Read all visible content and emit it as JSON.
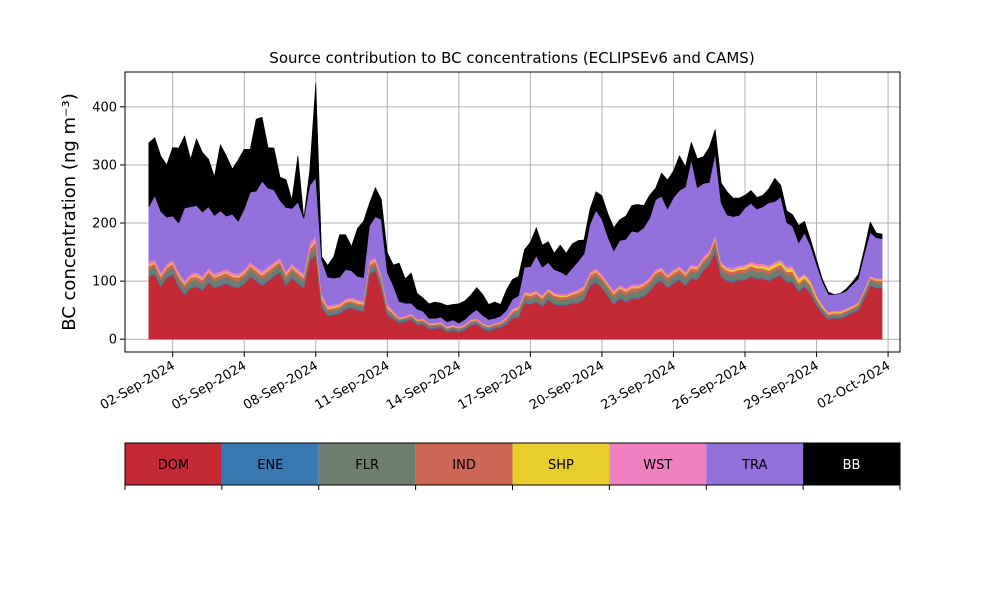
{
  "chart_data": {
    "type": "area",
    "stacked": true,
    "title": "Source contribution to BC concentrations (ECLIPSEv6 and CAMS)",
    "xlabel": "",
    "ylabel": "BC concentration (ng m⁻³)",
    "ylim": [
      -22,
      460
    ],
    "yticks": [
      0,
      100,
      200,
      300,
      400
    ],
    "xlim": [
      "2024-08-31T00:00",
      "2024-10-02T12:00"
    ],
    "xticks": [
      "02-Sep-2024",
      "05-Sep-2024",
      "08-Sep-2024",
      "11-Sep-2024",
      "14-Sep-2024",
      "17-Sep-2024",
      "20-Sep-2024",
      "23-Sep-2024",
      "26-Sep-2024",
      "29-Sep-2024",
      "02-Oct-2024"
    ],
    "xtick_dates": [
      "2024-09-02",
      "2024-09-05",
      "2024-09-08",
      "2024-09-11",
      "2024-09-14",
      "2024-09-17",
      "2024-09-20",
      "2024-09-23",
      "2024-09-26",
      "2024-09-29",
      "2024-10-02"
    ],
    "grid": true,
    "legend": "below",
    "x": [
      "2024-09-01T00:00",
      "2024-09-01T06:00",
      "2024-09-01T12:00",
      "2024-09-01T18:00",
      "2024-09-02T00:00",
      "2024-09-02T06:00",
      "2024-09-02T12:00",
      "2024-09-02T18:00",
      "2024-09-03T00:00",
      "2024-09-03T06:00",
      "2024-09-03T12:00",
      "2024-09-03T18:00",
      "2024-09-04T00:00",
      "2024-09-04T06:00",
      "2024-09-04T12:00",
      "2024-09-04T18:00",
      "2024-09-05T00:00",
      "2024-09-05T06:00",
      "2024-09-05T12:00",
      "2024-09-05T18:00",
      "2024-09-06T00:00",
      "2024-09-06T06:00",
      "2024-09-06T12:00",
      "2024-09-06T18:00",
      "2024-09-07T00:00",
      "2024-09-07T06:00",
      "2024-09-07T12:00",
      "2024-09-07T18:00",
      "2024-09-08T00:00",
      "2024-09-08T06:00",
      "2024-09-08T12:00",
      "2024-09-08T18:00",
      "2024-09-09T00:00",
      "2024-09-09T06:00",
      "2024-09-09T12:00",
      "2024-09-09T18:00",
      "2024-09-10T00:00",
      "2024-09-10T06:00",
      "2024-09-10T12:00",
      "2024-09-10T18:00",
      "2024-09-11T00:00",
      "2024-09-11T06:00",
      "2024-09-11T12:00",
      "2024-09-11T18:00",
      "2024-09-12T00:00",
      "2024-09-12T06:00",
      "2024-09-12T12:00",
      "2024-09-12T18:00",
      "2024-09-13T00:00",
      "2024-09-13T06:00",
      "2024-09-13T12:00",
      "2024-09-13T18:00",
      "2024-09-14T00:00",
      "2024-09-14T06:00",
      "2024-09-14T12:00",
      "2024-09-14T18:00",
      "2024-09-15T00:00",
      "2024-09-15T06:00",
      "2024-09-15T12:00",
      "2024-09-15T18:00",
      "2024-09-16T00:00",
      "2024-09-16T06:00",
      "2024-09-16T12:00",
      "2024-09-16T18:00",
      "2024-09-17T00:00",
      "2024-09-17T06:00",
      "2024-09-17T12:00",
      "2024-09-17T18:00",
      "2024-09-18T00:00",
      "2024-09-18T06:00",
      "2024-09-18T12:00",
      "2024-09-18T18:00",
      "2024-09-19T00:00",
      "2024-09-19T06:00",
      "2024-09-19T12:00",
      "2024-09-19T18:00",
      "2024-09-20T00:00",
      "2024-09-20T06:00",
      "2024-09-20T12:00",
      "2024-09-20T18:00",
      "2024-09-21T00:00",
      "2024-09-21T06:00",
      "2024-09-21T12:00",
      "2024-09-21T18:00",
      "2024-09-22T00:00",
      "2024-09-22T06:00",
      "2024-09-22T12:00",
      "2024-09-22T18:00",
      "2024-09-23T00:00",
      "2024-09-23T06:00",
      "2024-09-23T12:00",
      "2024-09-23T18:00",
      "2024-09-24T00:00",
      "2024-09-24T06:00",
      "2024-09-24T12:00",
      "2024-09-24T18:00",
      "2024-09-25T00:00",
      "2024-09-25T06:00",
      "2024-09-25T12:00",
      "2024-09-25T18:00",
      "2024-09-26T00:00",
      "2024-09-26T06:00",
      "2024-09-26T12:00",
      "2024-09-26T18:00",
      "2024-09-27T00:00",
      "2024-09-27T06:00",
      "2024-09-27T12:00",
      "2024-09-27T18:00",
      "2024-09-28T00:00",
      "2024-09-28T06:00",
      "2024-09-28T12:00",
      "2024-09-28T18:00",
      "2024-09-29T00:00",
      "2024-09-29T06:00",
      "2024-09-29T12:00",
      "2024-09-29T18:00",
      "2024-09-30T00:00",
      "2024-09-30T06:00",
      "2024-09-30T12:00",
      "2024-09-30T18:00",
      "2024-10-01T00:00",
      "2024-10-01T06:00",
      "2024-10-01T12:00",
      "2024-10-01T18:00"
    ],
    "series": [
      {
        "name": "DOM",
        "color": "#c42a35",
        "values": [
          108,
          112,
          90,
          105,
          112,
          90,
          76,
          88,
          90,
          84,
          98,
          88,
          92,
          96,
          90,
          88,
          95,
          108,
          100,
          92,
          100,
          108,
          115,
          92,
          105,
          96,
          88,
          135,
          145,
          55,
          40,
          42,
          44,
          52,
          54,
          50,
          48,
          112,
          118,
          88,
          42,
          35,
          28,
          30,
          34,
          25,
          26,
          18,
          18,
          20,
          12,
          15,
          12,
          16,
          24,
          26,
          18,
          14,
          18,
          20,
          26,
          36,
          38,
          62,
          60,
          64,
          56,
          68,
          60,
          58,
          58,
          62,
          62,
          68,
          92,
          98,
          88,
          74,
          60,
          70,
          64,
          70,
          70,
          74,
          82,
          96,
          100,
          88,
          96,
          102,
          92,
          105,
          102,
          118,
          128,
          150,
          108,
          100,
          98,
          102,
          102,
          108,
          104,
          104,
          100,
          106,
          110,
          98,
          98,
          82,
          90,
          78,
          58,
          44,
          34,
          36,
          36,
          40,
          45,
          50,
          70,
          92,
          88,
          88
        ]
      },
      {
        "name": "ENE",
        "color": "#3a78b1",
        "values": [
          2,
          2,
          2,
          2,
          2,
          2,
          2,
          2,
          2,
          2,
          2,
          2,
          2,
          2,
          2,
          2,
          2,
          2,
          2,
          2,
          2,
          2,
          2,
          2,
          2,
          2,
          2,
          2,
          2,
          2,
          2,
          2,
          2,
          2,
          2,
          2,
          2,
          2,
          2,
          2,
          2,
          2,
          2,
          2,
          2,
          2,
          2,
          2,
          2,
          2,
          2,
          2,
          2,
          2,
          2,
          2,
          2,
          2,
          2,
          2,
          2,
          2,
          2,
          2,
          2,
          2,
          2,
          2,
          2,
          2,
          2,
          2,
          2,
          2,
          2,
          2,
          2,
          2,
          2,
          2,
          2,
          2,
          2,
          2,
          2,
          2,
          2,
          2,
          2,
          2,
          2,
          2,
          2,
          2,
          2,
          2,
          2,
          2,
          2,
          2,
          2,
          2,
          2,
          2,
          2,
          2,
          2,
          2,
          2,
          2,
          2,
          2,
          2,
          2,
          2,
          2,
          2,
          2,
          2,
          2,
          2,
          2,
          2,
          2
        ]
      },
      {
        "name": "FLR",
        "color": "#6e7e6e",
        "values": [
          10,
          10,
          10,
          10,
          10,
          10,
          10,
          10,
          10,
          10,
          10,
          10,
          10,
          10,
          10,
          10,
          10,
          10,
          10,
          10,
          10,
          10,
          10,
          10,
          10,
          10,
          10,
          10,
          12,
          8,
          6,
          6,
          6,
          6,
          6,
          6,
          6,
          8,
          8,
          8,
          6,
          4,
          3,
          3,
          3,
          3,
          3,
          3,
          3,
          3,
          3,
          3,
          3,
          3,
          3,
          3,
          3,
          3,
          3,
          3,
          4,
          6,
          8,
          8,
          8,
          8,
          8,
          8,
          8,
          8,
          8,
          8,
          10,
          10,
          10,
          10,
          10,
          10,
          10,
          10,
          10,
          10,
          10,
          10,
          10,
          10,
          10,
          10,
          10,
          10,
          10,
          10,
          10,
          10,
          10,
          12,
          10,
          10,
          10,
          10,
          10,
          10,
          10,
          10,
          10,
          10,
          10,
          10,
          10,
          8,
          8,
          8,
          6,
          5,
          4,
          4,
          4,
          4,
          4,
          5,
          6,
          7,
          7,
          7
        ]
      },
      {
        "name": "IND",
        "color": "#cc6655",
        "values": [
          6,
          6,
          6,
          6,
          6,
          6,
          6,
          6,
          6,
          6,
          6,
          6,
          6,
          6,
          6,
          6,
          6,
          6,
          6,
          6,
          6,
          6,
          6,
          6,
          6,
          6,
          6,
          8,
          8,
          5,
          4,
          4,
          4,
          4,
          4,
          4,
          4,
          6,
          6,
          6,
          4,
          3,
          2,
          2,
          2,
          2,
          2,
          2,
          2,
          2,
          2,
          2,
          2,
          2,
          2,
          2,
          2,
          2,
          2,
          2,
          3,
          4,
          4,
          5,
          5,
          5,
          5,
          5,
          5,
          5,
          5,
          5,
          6,
          6,
          6,
          6,
          6,
          6,
          6,
          6,
          6,
          6,
          6,
          6,
          6,
          6,
          6,
          6,
          6,
          6,
          6,
          6,
          6,
          6,
          6,
          8,
          6,
          6,
          6,
          6,
          6,
          6,
          6,
          6,
          6,
          6,
          6,
          6,
          6,
          5,
          5,
          5,
          4,
          3,
          3,
          3,
          3,
          3,
          3,
          3,
          4,
          4,
          4,
          4
        ]
      },
      {
        "name": "SHP",
        "color": "#e8cd2e",
        "values": [
          2,
          2,
          2,
          2,
          2,
          2,
          2,
          2,
          2,
          2,
          2,
          2,
          2,
          2,
          2,
          2,
          2,
          2,
          2,
          2,
          2,
          2,
          2,
          2,
          2,
          2,
          2,
          3,
          3,
          2,
          2,
          2,
          2,
          2,
          2,
          2,
          2,
          2,
          2,
          2,
          2,
          2,
          1,
          1,
          1,
          1,
          1,
          1,
          1,
          1,
          1,
          1,
          1,
          1,
          1,
          1,
          1,
          1,
          1,
          1,
          1,
          2,
          2,
          2,
          2,
          2,
          2,
          2,
          2,
          2,
          2,
          2,
          2,
          2,
          2,
          2,
          2,
          2,
          2,
          2,
          2,
          2,
          2,
          2,
          2,
          2,
          2,
          2,
          2,
          2,
          2,
          2,
          2,
          2,
          2,
          3,
          3,
          3,
          3,
          3,
          4,
          4,
          4,
          4,
          5,
          5,
          5,
          5,
          6,
          6,
          5,
          5,
          4,
          3,
          2,
          2,
          2,
          2,
          2,
          2,
          2,
          2,
          2,
          2
        ]
      },
      {
        "name": "WST",
        "color": "#f07fbf",
        "values": [
          5,
          5,
          5,
          5,
          5,
          5,
          5,
          5,
          5,
          5,
          5,
          5,
          5,
          5,
          5,
          5,
          5,
          5,
          5,
          5,
          5,
          5,
          5,
          5,
          5,
          5,
          5,
          8,
          8,
          5,
          4,
          4,
          4,
          4,
          4,
          4,
          4,
          5,
          5,
          5,
          4,
          3,
          2,
          2,
          2,
          2,
          2,
          2,
          2,
          2,
          2,
          2,
          2,
          2,
          2,
          2,
          2,
          2,
          2,
          2,
          2,
          3,
          3,
          3,
          3,
          3,
          3,
          3,
          3,
          3,
          3,
          3,
          4,
          4,
          4,
          4,
          4,
          4,
          4,
          4,
          4,
          4,
          4,
          4,
          4,
          4,
          4,
          4,
          4,
          4,
          4,
          4,
          4,
          4,
          4,
          5,
          4,
          4,
          4,
          4,
          4,
          4,
          4,
          4,
          4,
          4,
          4,
          4,
          4,
          3,
          3,
          3,
          3,
          2,
          2,
          2,
          2,
          2,
          2,
          2,
          2,
          2,
          2,
          2
        ]
      },
      {
        "name": "TRA",
        "color": "#9370db",
        "values": [
          95,
          110,
          105,
          80,
          75,
          85,
          125,
          115,
          115,
          110,
          105,
          100,
          104,
          91,
          100,
          90,
          104,
          120,
          130,
          155,
          135,
          124,
          99,
          110,
          95,
          115,
          95,
          99,
          100,
          60,
          49,
          45,
          45,
          50,
          46,
          40,
          40,
          60,
          70,
          95,
          55,
          43,
          27,
          22,
          18,
          17,
          12,
          8,
          8,
          8,
          8,
          8,
          6,
          8,
          10,
          15,
          13,
          10,
          8,
          10,
          12,
          16,
          18,
          42,
          45,
          60,
          48,
          44,
          40,
          38,
          32,
          40,
          48,
          55,
          82,
          100,
          95,
          78,
          68,
          76,
          84,
          92,
          90,
          94,
          102,
          120,
          122,
          112,
          124,
          130,
          146,
          180,
          135,
          126,
          118,
          140,
          101,
          89,
          88,
          86,
          98,
          100,
          94,
          98,
          108,
          104,
          108,
          76,
          68,
          60,
          70,
          60,
          52,
          40,
          30,
          28,
          30,
          30,
          36,
          40,
          60,
          75,
          70,
          68
        ]
      },
      {
        "name": "BB",
        "color": "#000000",
        "values": [
          110,
          100,
          95,
          90,
          118,
          129,
          124,
          82,
          115,
          102,
          82,
          67,
          114,
          104,
          78,
          106,
          103,
          74,
          124,
          110,
          70,
          72,
          40,
          48,
          15,
          80,
          0,
          27,
          163,
          5,
          20,
          37,
          73,
          60,
          42,
          83,
          97,
          39,
          50,
          35,
          34,
          36,
          66,
          42,
          52,
          27,
          23,
          25,
          28,
          24,
          28,
          27,
          33,
          32,
          32,
          38,
          36,
          26,
          28,
          20,
          35,
          34,
          33,
          30,
          42,
          48,
          38,
          36,
          28,
          46,
          38,
          42,
          36,
          24,
          26,
          32,
          40,
          40,
          40,
          36,
          40,
          44,
          48,
          38,
          40,
          20,
          40,
          50,
          46,
          60,
          35,
          30,
          50,
          46,
          60,
          41,
          35,
          40,
          32,
          30,
          22,
          22,
          20,
          20,
          24,
          40,
          20,
          20,
          20,
          30,
          20,
          10,
          8,
          4,
          4,
          0,
          0,
          4,
          4,
          8,
          8,
          18,
          8,
          8
        ]
      }
    ],
    "legend_entries": [
      {
        "name": "DOM",
        "color": "#c42a35"
      },
      {
        "name": "ENE",
        "color": "#3a78b1"
      },
      {
        "name": "FLR",
        "color": "#6e7e6e"
      },
      {
        "name": "IND",
        "color": "#cc6655"
      },
      {
        "name": "SHP",
        "color": "#e8cd2e"
      },
      {
        "name": "WST",
        "color": "#f07fbf"
      },
      {
        "name": "TRA",
        "color": "#9370db"
      },
      {
        "name": "BB",
        "color": "#000000"
      }
    ]
  }
}
